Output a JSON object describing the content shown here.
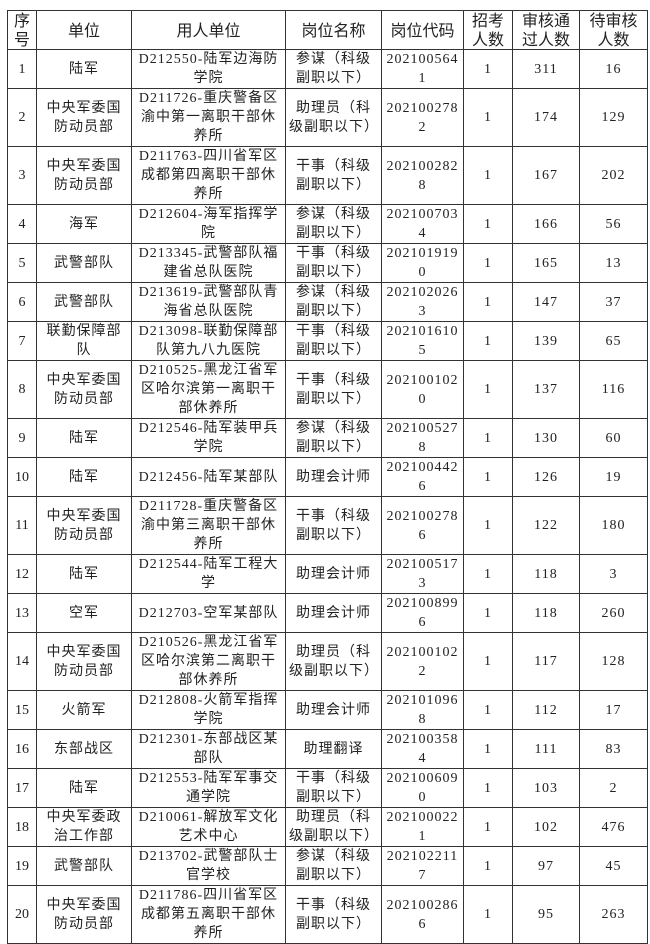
{
  "table": {
    "headers": [
      "序号",
      "单位",
      "用人单位",
      "岗位名称",
      "岗位代码",
      "招考人数",
      "审核通过人数",
      "待审核人数"
    ],
    "rows": [
      [
        "1",
        "陆军",
        "D212550-陆军边海防学院",
        "参谋（科级副职以下）",
        "2021005641",
        "1",
        "311",
        "16"
      ],
      [
        "2",
        "中央军委国防动员部",
        "D211726-重庆警备区渝中第一离职干部休养所",
        "助理员（科级副职以下）",
        "2021002782",
        "1",
        "174",
        "129"
      ],
      [
        "3",
        "中央军委国防动员部",
        "D211763-四川省军区成都第四离职干部休养所",
        "干事（科级副职以下）",
        "2021002828",
        "1",
        "167",
        "202"
      ],
      [
        "4",
        "海军",
        "D212604-海军指挥学院",
        "参谋（科级副职以下）",
        "2021007034",
        "1",
        "166",
        "56"
      ],
      [
        "5",
        "武警部队",
        "D213345-武警部队福建省总队医院",
        "干事（科级副职以下）",
        "2021019190",
        "1",
        "165",
        "13"
      ],
      [
        "6",
        "武警部队",
        "D213619-武警部队青海省总队医院",
        "参谋（科级副职以下）",
        "2021020263",
        "1",
        "147",
        "37"
      ],
      [
        "7",
        "联勤保障部队",
        "D213098-联勤保障部队第九八九医院",
        "干事（科级副职以下）",
        "2021016105",
        "1",
        "139",
        "65"
      ],
      [
        "8",
        "中央军委国防动员部",
        "D210525-黑龙江省军区哈尔滨第一离职干部休养所",
        "干事（科级副职以下）",
        "2021001020",
        "1",
        "137",
        "116"
      ],
      [
        "9",
        "陆军",
        "D212546-陆军装甲兵学院",
        "参谋（科级副职以下）",
        "2021005278",
        "1",
        "130",
        "60"
      ],
      [
        "10",
        "陆军",
        "D212456-陆军某部队",
        "助理会计师",
        "2021004426",
        "1",
        "126",
        "19"
      ],
      [
        "11",
        "中央军委国防动员部",
        "D211728-重庆警备区渝中第三离职干部休养所",
        "干事（科级副职以下）",
        "2021002786",
        "1",
        "122",
        "180"
      ],
      [
        "12",
        "陆军",
        "D212544-陆军工程大学",
        "助理会计师",
        "2021005173",
        "1",
        "118",
        "3"
      ],
      [
        "13",
        "空军",
        "D212703-空军某部队",
        "助理会计师",
        "2021008996",
        "1",
        "118",
        "260"
      ],
      [
        "14",
        "中央军委国防动员部",
        "D210526-黑龙江省军区哈尔滨第二离职干部休养所",
        "助理员（科级副职以下）",
        "2021001022",
        "1",
        "117",
        "128"
      ],
      [
        "15",
        "火箭军",
        "D212808-火箭军指挥学院",
        "助理会计师",
        "2021010968",
        "1",
        "112",
        "17"
      ],
      [
        "16",
        "东部战区",
        "D212301-东部战区某部队",
        "助理翻译",
        "2021003584",
        "1",
        "111",
        "83"
      ],
      [
        "17",
        "陆军",
        "D212553-陆军军事交通学院",
        "干事（科级副职以下）",
        "2021006090",
        "1",
        "103",
        "2"
      ],
      [
        "18",
        "中央军委政治工作部",
        "D210061-解放军文化艺术中心",
        "助理员（科级副职以下）",
        "2021000221",
        "1",
        "102",
        "476"
      ],
      [
        "19",
        "武警部队",
        "D213702-武警部队士官学校",
        "参谋（科级副职以下）",
        "2021022117",
        "1",
        "97",
        "45"
      ],
      [
        "20",
        "中央军委国防动员部",
        "D211786-四川省军区成都第五离职干部休养所",
        "干事（科级副职以下）",
        "2021002866",
        "1",
        "95",
        "263"
      ]
    ]
  }
}
